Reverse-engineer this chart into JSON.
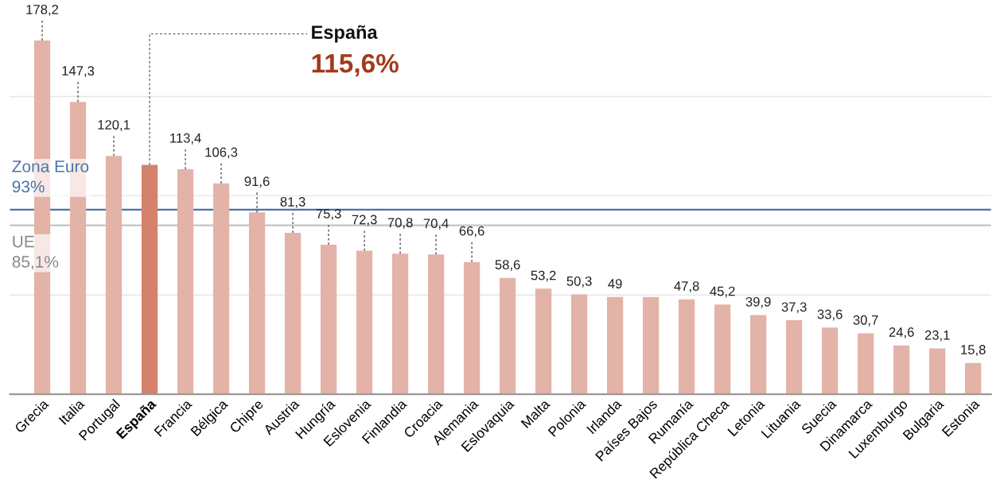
{
  "chart_data": {
    "type": "bar",
    "categories": [
      "Grecia",
      "Italia",
      "Portugal",
      "España",
      "Francia",
      "Bélgica",
      "Chipre",
      "Austria",
      "Hungría",
      "Eslovenia",
      "Finlandia",
      "Croacia",
      "Alemania",
      "Eslovaquia",
      "Malta",
      "Polonia",
      "Irlanda",
      "Países Bajos",
      "Rumanía",
      "República Checa",
      "Letonia",
      "Lituania",
      "Suecia",
      "Dinamarca",
      "Luxemburgo",
      "Bulgaria",
      "Estonia"
    ],
    "values": [
      178.2,
      147.3,
      120.1,
      115.6,
      113.4,
      106.3,
      91.6,
      81.3,
      75.3,
      72.3,
      70.8,
      70.4,
      66.6,
      58.6,
      53.2,
      50.3,
      49,
      49,
      47.8,
      45.2,
      39.9,
      37.3,
      33.6,
      30.7,
      24.6,
      23.1,
      15.8
    ],
    "value_labels": [
      "178,2",
      "147,3",
      "120,1",
      null,
      "113,4",
      "106,3",
      "91,6",
      "81,3",
      "75,3",
      "72,3",
      "70,8",
      "70,4",
      "66,6",
      "58,6",
      "53,2",
      "50,3",
      "49",
      null,
      "47,8",
      "45,2",
      "39,9",
      "37,3",
      "33,6",
      "30,7",
      "24,6",
      "23,1",
      "15,8"
    ],
    "colors": [
      "#e3b3a8",
      "#e3b3a8",
      "#e3b3a8",
      "#d4826b",
      "#e3b3a8",
      "#e3b3a8",
      "#e3b3a8",
      "#e3b3a8",
      "#e3b3a8",
      "#e3b3a8",
      "#e3b3a8",
      "#e3b3a8",
      "#e3b3a8",
      "#e3b3a8",
      "#e3b3a8",
      "#e3b3a8",
      "#e3b3a8",
      "#e3b3a8",
      "#e3b3a8",
      "#e3b3a8",
      "#e3b3a8",
      "#e3b3a8",
      "#e3b3a8",
      "#e3b3a8",
      "#e3b3a8",
      "#e3b3a8",
      "#e3b3a8"
    ],
    "annotations": [
      {
        "text": "España",
        "x": "España",
        "y": 115.6
      },
      {
        "text": "115,6%",
        "x": "España",
        "y": 115.6
      }
    ],
    "ref_lines": [
      {
        "axis": "y",
        "value": 93,
        "label": "Zona Euro\n93%",
        "color": "#4a73a8"
      },
      {
        "axis": "y",
        "value": 85.1,
        "label": "UE\n85,1%",
        "color": "#c4c4c4"
      }
    ],
    "yticks": [
      {
        "value": 50,
        "label": null
      },
      {
        "value": 100,
        "label": null
      },
      {
        "value": 150,
        "label": null
      }
    ],
    "grid": "y",
    "legend": false,
    "tick_labels": "x"
  }
}
